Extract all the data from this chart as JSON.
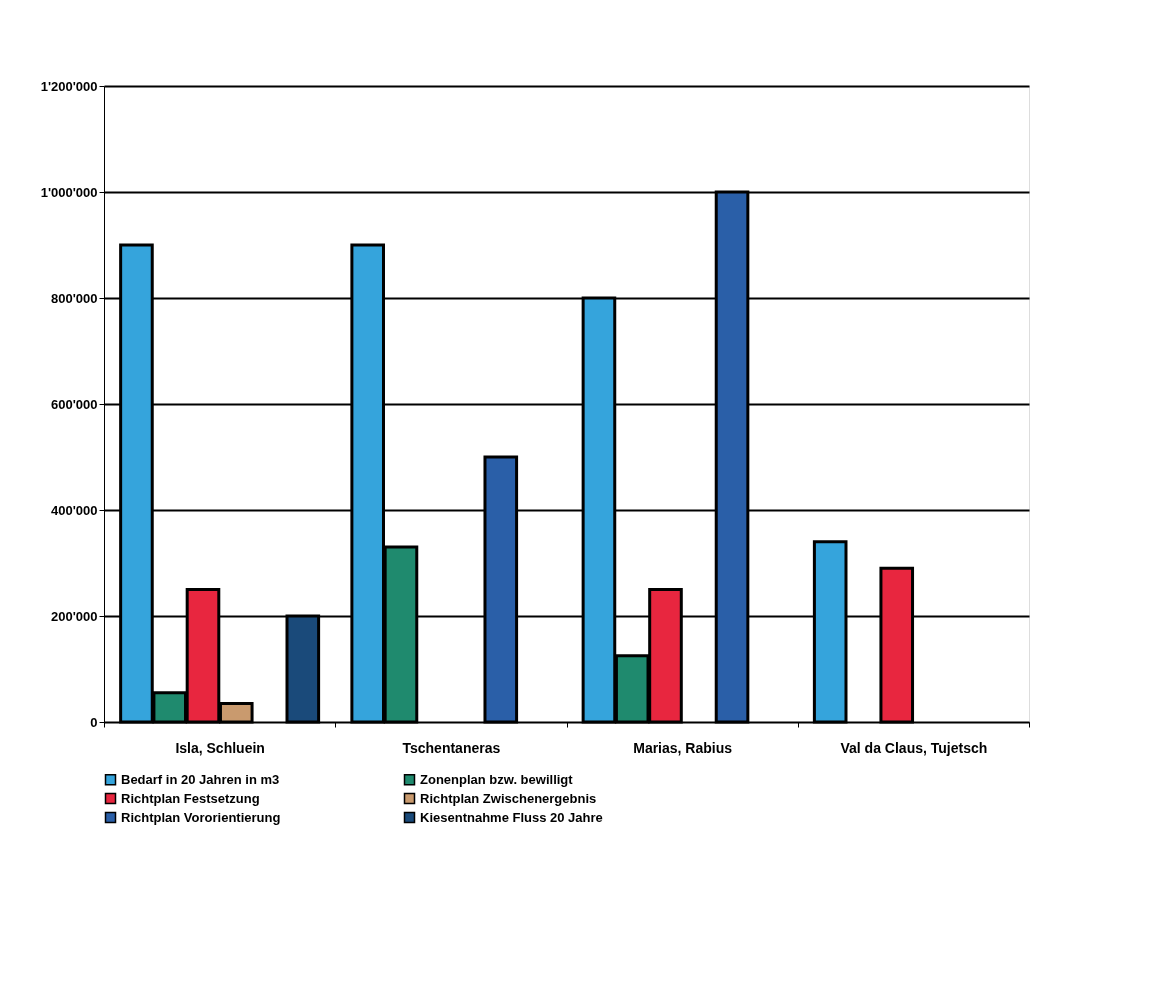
{
  "chart_data": {
    "type": "bar",
    "categories": [
      "Isla, Schluein",
      "Tschentaneras",
      "Marias, Rabius",
      "Val da Claus, Tujetsch"
    ],
    "series": [
      {
        "name": "Bedarf in 20 Jahren in m3",
        "color": "#35a4dc",
        "values": [
          900000,
          900000,
          800000,
          340000
        ]
      },
      {
        "name": "Zonenplan bzw. bewilligt",
        "color": "#1f8a6e",
        "values": [
          55000,
          330000,
          125000,
          null
        ]
      },
      {
        "name": "Richtplan Festsetzung",
        "color": "#e8263f",
        "values": [
          250000,
          null,
          250000,
          290000
        ]
      },
      {
        "name": "Richtplan Zwischenergebnis",
        "color": "#c99a6e",
        "values": [
          35000,
          null,
          null,
          null
        ]
      },
      {
        "name": "Richtplan Vororientierung",
        "color": "#2a5fa8",
        "values": [
          null,
          500000,
          1000000,
          null
        ]
      },
      {
        "name": "Kiesentnahme Fluss 20 Jahre",
        "color": "#1a4a7a",
        "values": [
          200000,
          null,
          null,
          null
        ]
      }
    ],
    "ylim": [
      0,
      1200000
    ],
    "yticks": [
      {
        "value": 0,
        "label": "0"
      },
      {
        "value": 200000,
        "label": "200'000"
      },
      {
        "value": 400000,
        "label": "400'000"
      },
      {
        "value": 600000,
        "label": "600'000"
      },
      {
        "value": 800000,
        "label": "800'000"
      },
      {
        "value": 1000000,
        "label": "1'000'000"
      },
      {
        "value": 1200000,
        "label": "1'200'000"
      }
    ],
    "grid": "y",
    "legend": "bottom"
  }
}
